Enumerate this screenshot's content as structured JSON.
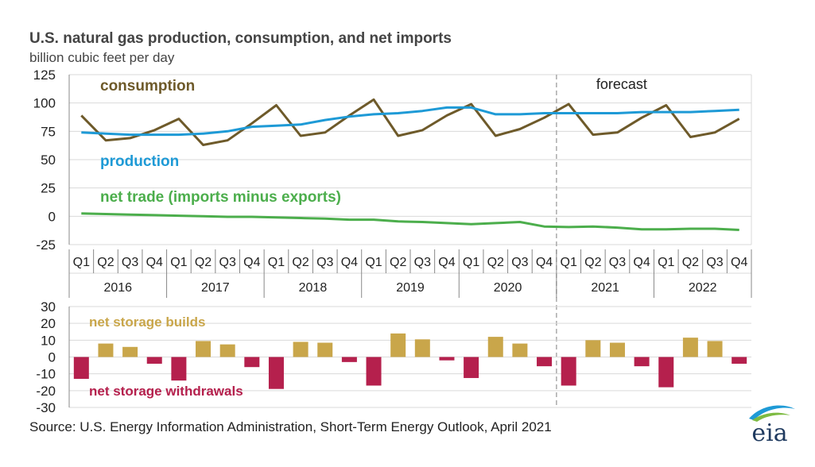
{
  "header": {
    "title": "U.S. natural gas production, consumption, and net imports",
    "subtitle": "billion cubic feet per day"
  },
  "footer": {
    "source": "Source: U.S. Energy Information Administration, Short-Term Energy Outlook, April 2021",
    "logo_text": "eia"
  },
  "colors": {
    "consumption": "#6e5a2a",
    "production": "#1e9ad6",
    "net_trade": "#4cae4c",
    "builds": "#c9a64a",
    "withdrawals": "#b5204d",
    "grid": "#d9d9d9",
    "axis": "#888888"
  },
  "chart_data": [
    {
      "type": "line",
      "name": "top",
      "ylim": [
        -25,
        125
      ],
      "yticks": [
        125,
        100,
        75,
        50,
        25,
        0,
        -25
      ],
      "grid": true,
      "forecast_label": "forecast",
      "forecast_start_index": 20,
      "quarters": [
        "Q1",
        "Q2",
        "Q3",
        "Q4",
        "Q1",
        "Q2",
        "Q3",
        "Q4",
        "Q1",
        "Q2",
        "Q3",
        "Q4",
        "Q1",
        "Q2",
        "Q3",
        "Q4",
        "Q1",
        "Q2",
        "Q3",
        "Q4",
        "Q1",
        "Q2",
        "Q3",
        "Q4",
        "Q1",
        "Q2",
        "Q3",
        "Q4"
      ],
      "years": [
        "2016",
        "2017",
        "2018",
        "2019",
        "2020",
        "2021",
        "2022"
      ],
      "series": [
        {
          "name": "consumption",
          "values": [
            89,
            67,
            69,
            76,
            86,
            63,
            67,
            82,
            98,
            71,
            74,
            89,
            103,
            71,
            76,
            89,
            99,
            71,
            77,
            87,
            99,
            72,
            74,
            87,
            98,
            70,
            74,
            86
          ]
        },
        {
          "name": "production",
          "values": [
            74,
            73,
            72,
            72,
            72,
            73,
            75,
            79,
            80,
            81,
            85,
            88,
            90,
            91,
            93,
            96,
            96,
            90,
            90,
            91,
            91,
            91,
            91,
            92,
            92,
            92,
            93,
            94
          ]
        },
        {
          "name": "net trade (imports minus exports)",
          "values": [
            2.5,
            2,
            1.5,
            1,
            0.5,
            0,
            -0.5,
            -0.5,
            -1,
            -1.5,
            -2,
            -3,
            -3,
            -4.5,
            -5,
            -6,
            -7,
            -6,
            -5,
            -9,
            -9.5,
            -9,
            -10,
            -11.5,
            -11.5,
            -11,
            -11,
            -12
          ]
        }
      ]
    },
    {
      "type": "bar",
      "name": "bottom",
      "ylim": [
        -30,
        30
      ],
      "yticks": [
        30,
        20,
        10,
        0,
        -10,
        -20,
        -30
      ],
      "grid": true,
      "series": [
        {
          "name": "net storage builds",
          "values": [
            -13,
            8,
            6,
            -4,
            -14,
            9.5,
            7.5,
            -6,
            -19,
            9,
            8.5,
            -3,
            -17,
            14,
            10.5,
            -2,
            -12.5,
            12,
            8,
            -5.5,
            -17,
            10,
            8.5,
            -5.5,
            -18,
            11.5,
            9.5,
            -4
          ]
        }
      ],
      "labels": {
        "builds": "net storage builds",
        "withdrawals": "net storage withdrawals"
      }
    }
  ]
}
